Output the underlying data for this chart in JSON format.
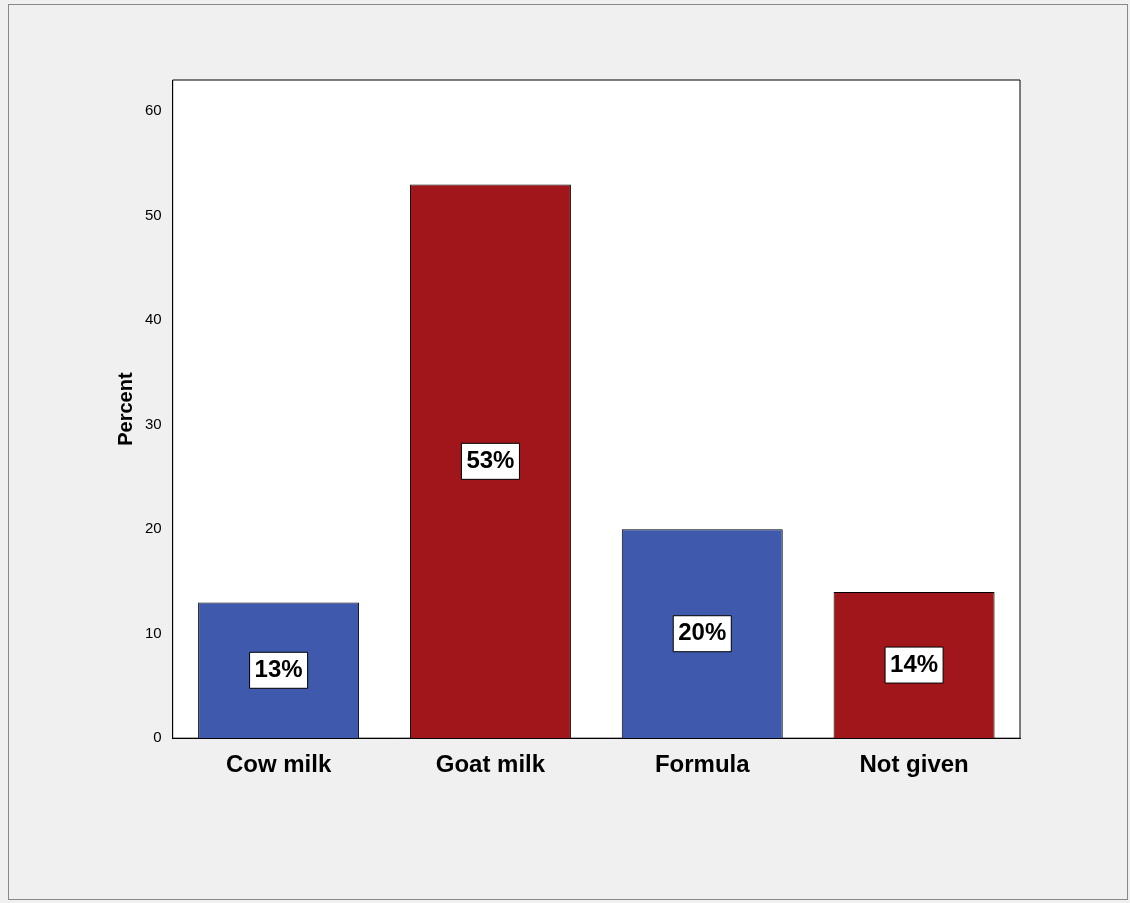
{
  "chart_data": {
    "type": "bar",
    "ylabel": "Percent",
    "categories": [
      "Cow milk",
      "Goat milk",
      "Formula",
      "Not given"
    ],
    "values": [
      13,
      53,
      20,
      14
    ],
    "colors": [
      "#3f5aad",
      "#a0161a",
      "#3f5aad",
      "#a0161a"
    ],
    "value_labels": [
      "13%",
      "53%",
      "20%",
      "14%"
    ],
    "ylim": [
      0,
      63
    ],
    "yticks": [
      0,
      10,
      20,
      30,
      40,
      50,
      60
    ]
  }
}
